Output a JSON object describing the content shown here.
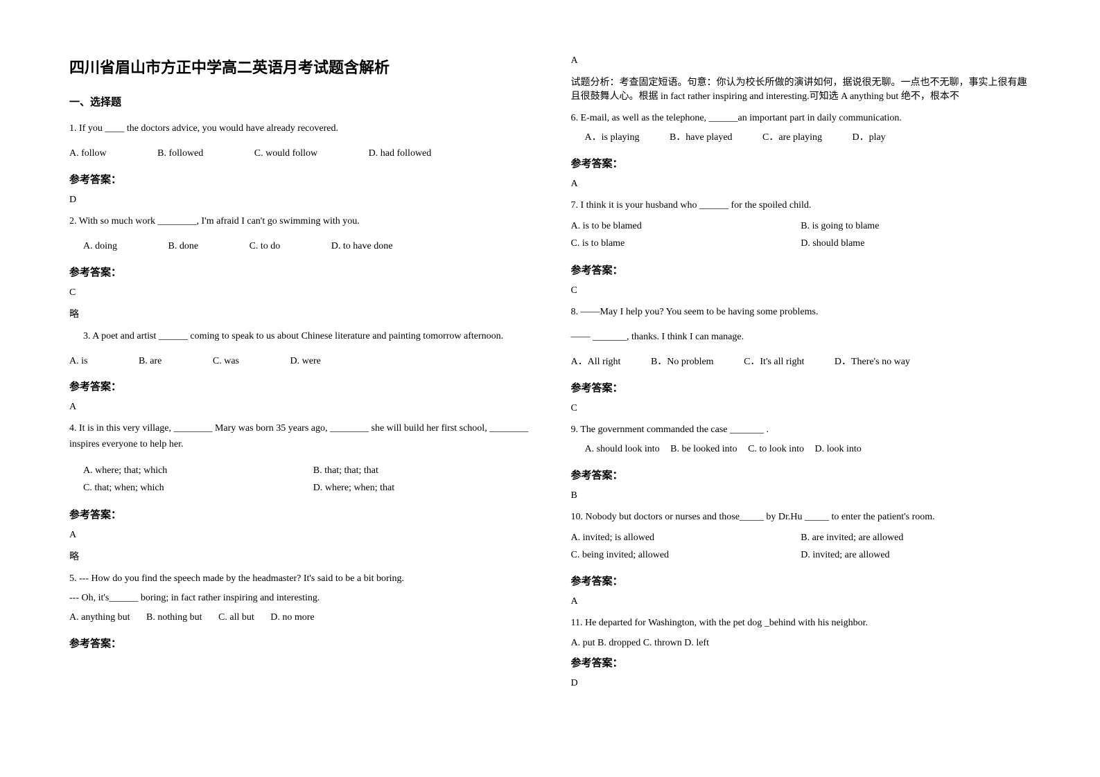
{
  "title": "四川省眉山市方正中学高二英语月考试题含解析",
  "section": "一、选择题",
  "answer_label": "参考答案：",
  "omit": "略",
  "left": {
    "q1": {
      "text": "1. If you ____ the doctors advice, you would have already recovered.",
      "a": "A. follow",
      "b": "B. followed",
      "c": "C. would follow",
      "d": "D. had followed",
      "ans": "D"
    },
    "q2": {
      "text": "2. With so much work ________, I'm afraid I can't go swimming with you.",
      "a": "A. doing",
      "b": "B. done",
      "c": "C. to do",
      "d": "D. to have done",
      "ans": "C"
    },
    "q3": {
      "text": "3. A poet and artist ______ coming to speak to us about Chinese literature and painting tomorrow afternoon.",
      "a": "A. is",
      "b": "B. are",
      "c": "C. was",
      "d": "D. were",
      "ans": "A"
    },
    "q4": {
      "text": "4. It is in this very village, ________ Mary was born 35 years ago, ________ she will build her first school, ________ inspires everyone to help her.",
      "a": "A. where; that; which",
      "b": "B. that; that; that",
      "c": "C. that; when; which",
      "d": "D. where; when; that",
      "ans": "A"
    },
    "q5": {
      "l1": "5. --- How do you find the speech made by the headmaster? It's said to be a bit boring.",
      "l2": "--- Oh, it's______ boring; in fact rather inspiring and interesting.",
      "a": "A. anything but",
      "b": "B. nothing but",
      "c": "C. all but",
      "d": "D. no more"
    }
  },
  "right": {
    "q5ans": "A",
    "q5note": "试题分析：考查固定短语。句意：你认为校长所做的演讲如何，据说很无聊。一点也不无聊，事实上很有趣且很鼓舞人心。根据 in fact rather inspiring and interesting.可知选 A anything but 绝不，根本不",
    "q6": {
      "text": "6. E-mail, as well as the telephone, ______an important part in daily communication.",
      "a": "A．is playing",
      "b": "B．have played",
      "c": "C．are playing",
      "d": "D．play",
      "ans": "A"
    },
    "q7": {
      "text": "7. I think it is your husband who ______ for the spoiled child.",
      "a": "A. is to be blamed",
      "b": "B. is going to blame",
      "c": "C. is to blame",
      "d": "D. should blame",
      "ans": "C"
    },
    "q8": {
      "l1": "8. ——May I help you? You seem to be having some problems.",
      "l2": "—— _______, thanks. I think I can manage.",
      "a": "A．All right",
      "b": "B．No problem",
      "c": "C．It's all right",
      "d": "D．There's no way",
      "ans": "C"
    },
    "q9": {
      "text": "9. The government commanded the case _______ .",
      "a": "A. should look into",
      "b": "B. be looked into",
      "c": "C. to look into",
      "d": "D. look into",
      "ans": "B"
    },
    "q10": {
      "text": "10. Nobody but doctors or nurses and those_____ by Dr.Hu _____ to enter the patient's room.",
      "a": "A. invited; is allowed",
      "b": "B. are invited; are allowed",
      "c": "C. being invited; allowed",
      "d": "D. invited; are allowed",
      "ans": "A"
    },
    "q11": {
      "text": "11. He departed for Washington, with the pet dog _behind with his neighbor.",
      "opts": "A. put   B. dropped   C. thrown   D. left",
      "ans": "D"
    }
  }
}
